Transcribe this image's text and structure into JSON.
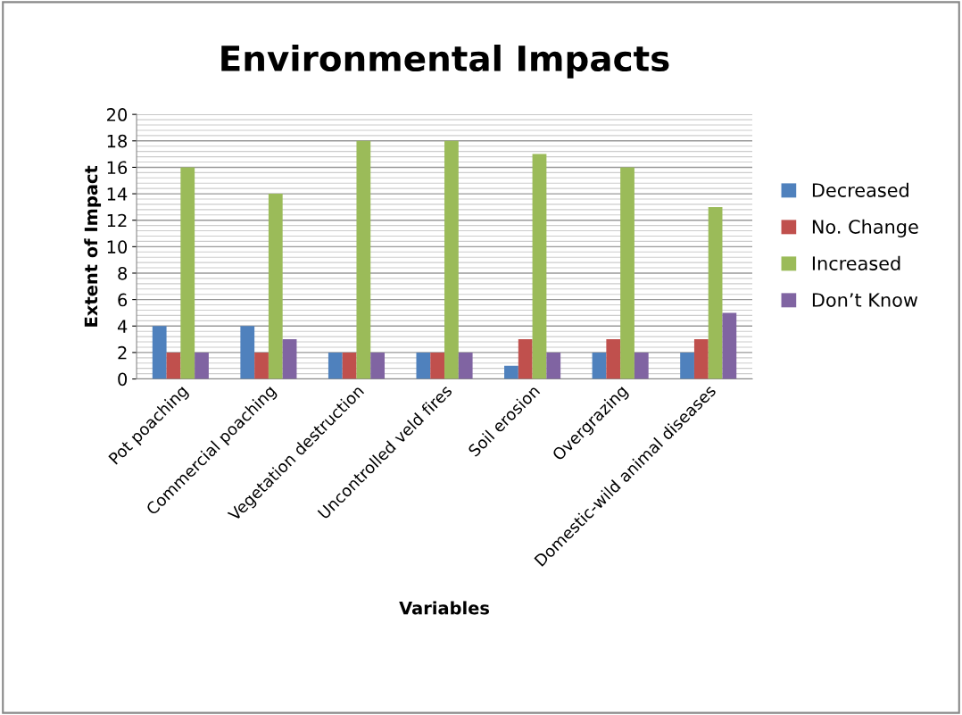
{
  "chart_data": {
    "type": "bar",
    "title": "Environmental Impacts",
    "xlabel": "Variables",
    "ylabel": "Extent of Impact",
    "categories": [
      "Pot poaching",
      "Commercial poaching",
      "Vegetation destruction",
      "Uncontrolled veld fires",
      "Soil erosion",
      "Overgrazing",
      "Domestic-wild animal diseases"
    ],
    "series": [
      {
        "name": "Decreased",
        "color": "#4f81bd",
        "values": [
          4,
          4,
          2,
          2,
          1,
          2,
          2
        ]
      },
      {
        "name": "No. Change",
        "color": "#c0504d",
        "values": [
          2,
          2,
          2,
          2,
          3,
          3,
          3
        ]
      },
      {
        "name": "Increased",
        "color": "#9bbb59",
        "values": [
          16,
          14,
          18,
          18,
          17,
          16,
          13
        ]
      },
      {
        "name": "Don’t Know",
        "color": "#8064a2",
        "values": [
          2,
          3,
          2,
          2,
          2,
          2,
          5
        ]
      }
    ],
    "ylim": [
      0,
      20
    ],
    "yticks": [
      0,
      2,
      4,
      6,
      8,
      10,
      12,
      14,
      16,
      18,
      20
    ],
    "grid": "y",
    "legend": "right"
  }
}
